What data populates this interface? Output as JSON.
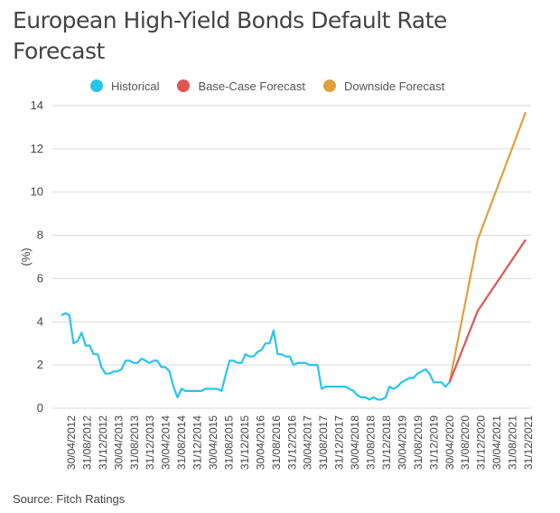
{
  "title": "European High-Yield Bonds Default Rate Forecast",
  "source": "Source: Fitch Ratings",
  "colors": {
    "historical": "#29c4ec",
    "base": "#e05555",
    "downside": "#e0a040",
    "grid": "#d9d9d9",
    "axis_text": "#444444"
  },
  "chart_data": {
    "type": "line",
    "title": "European High-Yield Bonds Default Rate Forecast",
    "xlabel": "",
    "ylabel": "(%)",
    "ylim": [
      0,
      14
    ],
    "yticks": [
      0,
      2,
      4,
      6,
      8,
      10,
      12,
      14
    ],
    "xlim": [
      "2012-04-30",
      "2021-12-31"
    ],
    "x_tick_labels": [
      "30/04/2012",
      "31/08/2012",
      "31/12/2012",
      "30/04/2013",
      "31/08/2013",
      "31/12/2013",
      "30/04/2014",
      "31/08/2014",
      "31/12/2014",
      "30/04/2015",
      "31/08/2015",
      "31/12/2015",
      "30/04/2016",
      "31/08/2016",
      "31/12/2016",
      "30/04/2017",
      "31/08/2017",
      "31/12/2017",
      "30/04/2018",
      "31/08/2018",
      "31/12/2018",
      "30/04/2019",
      "31/08/2019",
      "31/12/2019",
      "30/04/2020",
      "31/08/2020",
      "31/12/2020",
      "30/04/2021",
      "31/08/2021",
      "31/12/2021"
    ],
    "grid": "horizontal",
    "legend_position": "top",
    "series": [
      {
        "name": "Historical",
        "color": "#29c4ec",
        "points": [
          [
            "2012-04-30",
            4.3
          ],
          [
            "2012-05-31",
            4.4
          ],
          [
            "2012-06-30",
            4.3
          ],
          [
            "2012-07-31",
            3.0
          ],
          [
            "2012-08-31",
            3.1
          ],
          [
            "2012-09-30",
            3.5
          ],
          [
            "2012-10-31",
            2.9
          ],
          [
            "2012-11-30",
            2.9
          ],
          [
            "2012-12-31",
            2.5
          ],
          [
            "2013-01-31",
            2.5
          ],
          [
            "2013-02-28",
            1.9
          ],
          [
            "2013-03-31",
            1.6
          ],
          [
            "2013-04-30",
            1.6
          ],
          [
            "2013-05-31",
            1.7
          ],
          [
            "2013-06-30",
            1.7
          ],
          [
            "2013-07-31",
            1.8
          ],
          [
            "2013-08-31",
            2.2
          ],
          [
            "2013-09-30",
            2.2
          ],
          [
            "2013-10-31",
            2.1
          ],
          [
            "2013-11-30",
            2.1
          ],
          [
            "2013-12-31",
            2.3
          ],
          [
            "2014-01-31",
            2.2
          ],
          [
            "2014-02-28",
            2.1
          ],
          [
            "2014-03-31",
            2.2
          ],
          [
            "2014-04-30",
            2.2
          ],
          [
            "2014-05-31",
            1.9
          ],
          [
            "2014-06-30",
            1.9
          ],
          [
            "2014-07-31",
            1.7
          ],
          [
            "2014-08-31",
            1.0
          ],
          [
            "2014-09-30",
            0.5
          ],
          [
            "2014-10-31",
            0.9
          ],
          [
            "2014-11-30",
            0.8
          ],
          [
            "2014-12-31",
            0.8
          ],
          [
            "2015-01-31",
            0.8
          ],
          [
            "2015-02-28",
            0.8
          ],
          [
            "2015-03-31",
            0.8
          ],
          [
            "2015-04-30",
            0.9
          ],
          [
            "2015-05-31",
            0.9
          ],
          [
            "2015-06-30",
            0.9
          ],
          [
            "2015-07-31",
            0.9
          ],
          [
            "2015-08-31",
            0.8
          ],
          [
            "2015-09-30",
            1.5
          ],
          [
            "2015-10-31",
            2.2
          ],
          [
            "2015-11-30",
            2.2
          ],
          [
            "2015-12-31",
            2.1
          ],
          [
            "2016-01-31",
            2.1
          ],
          [
            "2016-02-29",
            2.5
          ],
          [
            "2016-03-31",
            2.4
          ],
          [
            "2016-04-30",
            2.4
          ],
          [
            "2016-05-31",
            2.6
          ],
          [
            "2016-06-30",
            2.7
          ],
          [
            "2016-07-31",
            3.0
          ],
          [
            "2016-08-31",
            3.0
          ],
          [
            "2016-09-30",
            3.6
          ],
          [
            "2016-10-31",
            2.5
          ],
          [
            "2016-11-30",
            2.5
          ],
          [
            "2016-12-31",
            2.4
          ],
          [
            "2017-01-31",
            2.4
          ],
          [
            "2017-02-28",
            2.0
          ],
          [
            "2017-03-31",
            2.1
          ],
          [
            "2017-04-30",
            2.1
          ],
          [
            "2017-05-31",
            2.1
          ],
          [
            "2017-06-30",
            2.0
          ],
          [
            "2017-07-31",
            2.0
          ],
          [
            "2017-08-31",
            2.0
          ],
          [
            "2017-09-30",
            0.9
          ],
          [
            "2017-10-31",
            1.0
          ],
          [
            "2017-11-30",
            1.0
          ],
          [
            "2017-12-31",
            1.0
          ],
          [
            "2018-01-31",
            1.0
          ],
          [
            "2018-02-28",
            1.0
          ],
          [
            "2018-03-31",
            1.0
          ],
          [
            "2018-04-30",
            0.9
          ],
          [
            "2018-05-31",
            0.8
          ],
          [
            "2018-06-30",
            0.6
          ],
          [
            "2018-07-31",
            0.5
          ],
          [
            "2018-08-31",
            0.5
          ],
          [
            "2018-09-30",
            0.4
          ],
          [
            "2018-10-31",
            0.5
          ],
          [
            "2018-11-30",
            0.4
          ],
          [
            "2018-12-31",
            0.4
          ],
          [
            "2019-01-31",
            0.5
          ],
          [
            "2019-02-28",
            1.0
          ],
          [
            "2019-03-31",
            0.9
          ],
          [
            "2019-04-30",
            1.0
          ],
          [
            "2019-05-31",
            1.2
          ],
          [
            "2019-06-30",
            1.3
          ],
          [
            "2019-07-31",
            1.4
          ],
          [
            "2019-08-31",
            1.4
          ],
          [
            "2019-09-30",
            1.6
          ],
          [
            "2019-10-31",
            1.7
          ],
          [
            "2019-11-30",
            1.8
          ],
          [
            "2019-12-31",
            1.6
          ],
          [
            "2020-01-31",
            1.2
          ],
          [
            "2020-02-29",
            1.2
          ],
          [
            "2020-03-31",
            1.2
          ],
          [
            "2020-04-30",
            1.0
          ],
          [
            "2020-05-31",
            1.2
          ]
        ]
      },
      {
        "name": "Base-Case Forecast",
        "color": "#e05555",
        "points": [
          [
            "2020-05-31",
            1.2
          ],
          [
            "2020-12-31",
            4.5
          ],
          [
            "2021-12-31",
            7.8
          ]
        ]
      },
      {
        "name": "Downside Forecast",
        "color": "#e0a040",
        "points": [
          [
            "2020-05-31",
            1.2
          ],
          [
            "2020-12-31",
            7.8
          ],
          [
            "2021-12-31",
            13.7
          ]
        ]
      }
    ]
  },
  "legend": [
    {
      "label": "Historical",
      "color": "#29c4ec"
    },
    {
      "label": "Base-Case Forecast",
      "color": "#e05555"
    },
    {
      "label": "Downside Forecast",
      "color": "#e0a040"
    }
  ]
}
